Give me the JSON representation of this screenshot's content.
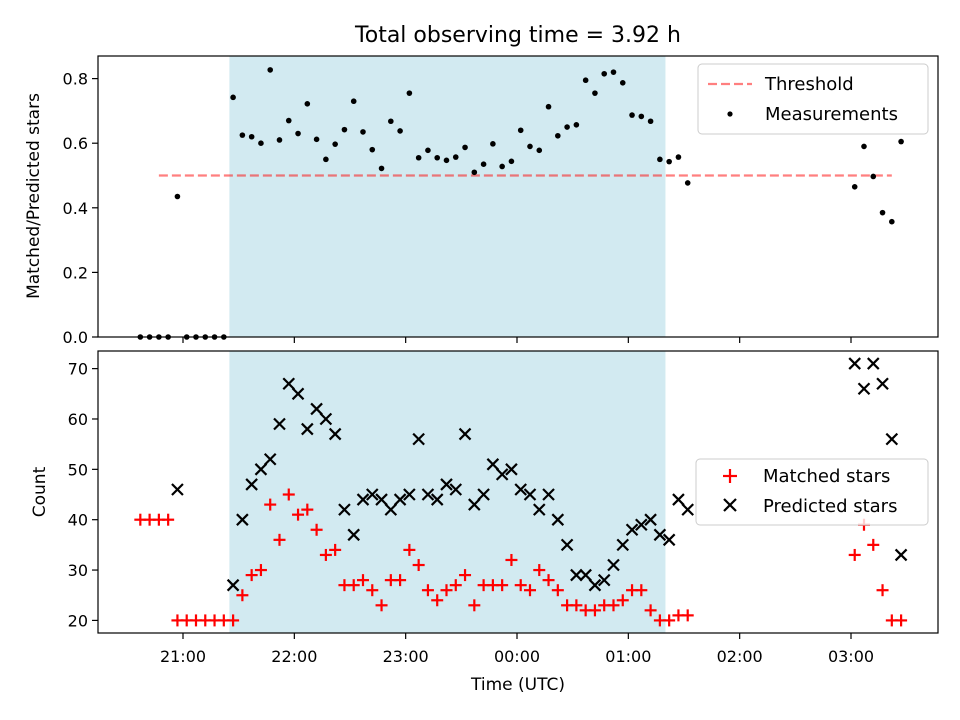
{
  "chart_data": [
    {
      "type": "scatter",
      "title": "Total observing time = 3.92 h",
      "ylabel": "Matched/Predicted stars",
      "xlabel": "",
      "x_unit": "hours_since_start_of_2024-01-01? see x values as HH:MM on x-axis",
      "ylim": [
        0,
        0.87
      ],
      "yticks": [
        "0.0",
        "0.2",
        "0.4",
        "0.6",
        "0.8"
      ],
      "grid": false,
      "legend_position": "top-right",
      "highlight_band": {
        "x_start": "21:25",
        "x_end": "01:20",
        "color": "#add8e6"
      },
      "threshold": {
        "name": "Threshold",
        "value": 0.5,
        "x_start": "20:47",
        "x_end": "03:22",
        "color": "#ff0000",
        "opacity": 0.5
      },
      "series": [
        {
          "name": "Measurements",
          "color": "#000000",
          "x": [
            "20:37",
            "20:42",
            "20:47",
            "20:52",
            "20:57",
            "21:02",
            "21:07",
            "21:12",
            "21:17",
            "21:22",
            "21:27",
            "21:32",
            "21:37",
            "21:42",
            "21:47",
            "21:52",
            "21:57",
            "22:02",
            "22:07",
            "22:12",
            "22:17",
            "22:22",
            "22:27",
            "22:32",
            "22:37",
            "22:42",
            "22:47",
            "22:52",
            "22:57",
            "23:02",
            "23:07",
            "23:12",
            "23:17",
            "23:22",
            "23:27",
            "23:32",
            "23:37",
            "23:42",
            "23:47",
            "23:52",
            "23:57",
            "00:02",
            "00:07",
            "00:12",
            "00:17",
            "00:22",
            "00:27",
            "00:32",
            "00:37",
            "00:42",
            "00:47",
            "00:52",
            "00:57",
            "01:02",
            "01:07",
            "01:12",
            "01:17",
            "01:22",
            "01:27",
            "01:32",
            "03:02",
            "03:07",
            "03:12",
            "03:17",
            "03:22",
            "03:27"
          ],
          "values": [
            0.0,
            0.0,
            0.0,
            0.0,
            0.435,
            0.0,
            0.0,
            0.0,
            0.0,
            0.0,
            0.742,
            0.625,
            0.62,
            0.6,
            0.827,
            0.61,
            0.67,
            0.63,
            0.722,
            0.612,
            0.55,
            0.597,
            0.642,
            0.73,
            0.635,
            0.58,
            0.522,
            0.668,
            0.638,
            0.755,
            0.555,
            0.578,
            0.555,
            0.547,
            0.557,
            0.587,
            0.51,
            0.535,
            0.598,
            0.528,
            0.544,
            0.64,
            0.59,
            0.578,
            0.713,
            0.623,
            0.65,
            0.657,
            0.795,
            0.755,
            0.815,
            0.82,
            0.787,
            0.687,
            0.683,
            0.668,
            0.55,
            0.543,
            0.557,
            0.477,
            0.465,
            0.59,
            0.497,
            0.385,
            0.357,
            0.605
          ]
        }
      ]
    },
    {
      "type": "scatter",
      "title": "",
      "ylabel": "Count",
      "xlabel": "Time (UTC)",
      "ylim": [
        17.5,
        73.5
      ],
      "yticks": [
        "20",
        "30",
        "40",
        "50",
        "60",
        "70"
      ],
      "xticks": [
        "21:00",
        "22:00",
        "23:00",
        "00:00",
        "01:00",
        "02:00",
        "03:00"
      ],
      "grid": false,
      "legend_position": "center-right",
      "highlight_band": {
        "x_start": "21:25",
        "x_end": "01:20",
        "color": "#add8e6"
      },
      "series": [
        {
          "name": "Matched stars",
          "marker": "plus",
          "color": "#ff0000",
          "x": [
            "20:37",
            "20:42",
            "20:47",
            "20:52",
            "20:57",
            "21:02",
            "21:07",
            "21:12",
            "21:17",
            "21:22",
            "21:27",
            "21:32",
            "21:37",
            "21:42",
            "21:47",
            "21:52",
            "21:57",
            "22:02",
            "22:07",
            "22:12",
            "22:17",
            "22:22",
            "22:27",
            "22:32",
            "22:37",
            "22:42",
            "22:47",
            "22:52",
            "22:57",
            "23:02",
            "23:07",
            "23:12",
            "23:17",
            "23:22",
            "23:27",
            "23:32",
            "23:37",
            "23:42",
            "23:47",
            "23:52",
            "23:57",
            "00:02",
            "00:07",
            "00:12",
            "00:17",
            "00:22",
            "00:27",
            "00:32",
            "00:37",
            "00:42",
            "00:47",
            "00:52",
            "00:57",
            "01:02",
            "01:07",
            "01:12",
            "01:17",
            "01:22",
            "01:27",
            "01:32",
            "03:02",
            "03:07",
            "03:12",
            "03:17",
            "03:22",
            "03:27"
          ],
          "values": [
            40,
            40,
            40,
            40,
            20,
            20,
            20,
            20,
            20,
            20,
            20,
            25,
            29,
            30,
            43,
            36,
            45,
            41,
            42,
            38,
            33,
            34,
            27,
            27,
            28,
            26,
            23,
            28,
            28,
            34,
            31,
            26,
            24,
            26,
            27,
            29,
            23,
            27,
            27,
            27,
            32,
            27,
            26,
            30,
            28,
            26,
            23,
            23,
            22,
            22,
            23,
            23,
            24,
            26,
            26,
            22,
            20,
            20,
            21,
            21,
            33,
            39,
            35,
            26,
            20,
            20
          ]
        },
        {
          "name": "Predicted stars",
          "marker": "x",
          "color": "#000000",
          "x": [
            "20:57",
            "21:27",
            "21:32",
            "21:37",
            "21:42",
            "21:47",
            "21:52",
            "21:57",
            "22:02",
            "22:07",
            "22:12",
            "22:17",
            "22:22",
            "22:27",
            "22:32",
            "22:37",
            "22:42",
            "22:47",
            "22:52",
            "22:57",
            "23:02",
            "23:07",
            "23:12",
            "23:17",
            "23:22",
            "23:27",
            "23:32",
            "23:37",
            "23:42",
            "23:47",
            "23:52",
            "23:57",
            "00:02",
            "00:07",
            "00:12",
            "00:17",
            "00:22",
            "00:27",
            "00:32",
            "00:37",
            "00:42",
            "00:47",
            "00:52",
            "00:57",
            "01:02",
            "01:07",
            "01:12",
            "01:17",
            "01:22",
            "01:27",
            "01:32",
            "03:02",
            "03:07",
            "03:12",
            "03:17",
            "03:22",
            "03:27"
          ],
          "values": [
            46,
            27,
            40,
            47,
            50,
            52,
            59,
            67,
            65,
            58,
            62,
            60,
            57,
            42,
            37,
            44,
            45,
            44,
            42,
            44,
            45,
            56,
            45,
            44,
            47,
            46,
            57,
            43,
            45,
            51,
            49,
            50,
            46,
            45,
            42,
            45,
            40,
            35,
            29,
            29,
            27,
            28,
            31,
            35,
            38,
            39,
            40,
            37,
            36,
            44,
            42,
            71,
            66,
            71,
            67,
            56,
            33
          ]
        }
      ]
    }
  ]
}
